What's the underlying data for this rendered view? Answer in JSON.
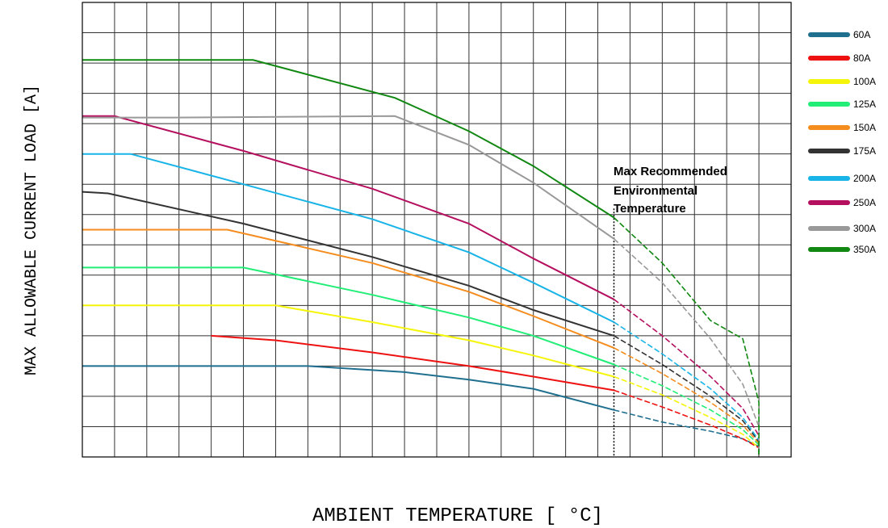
{
  "chart_data": {
    "type": "line",
    "title": "",
    "xlabel": "AMBIENT TEMPERATURE [ °C]",
    "ylabel": "MAX ALLOWABLE CURRENT LOAD [A]",
    "xlim": [
      0,
      22
    ],
    "ylim": [
      0,
      15
    ],
    "grid": true,
    "legend_position": "top-right",
    "annotation": {
      "lines": [
        "Max Recommended",
        "Environmental",
        "Temperature"
      ],
      "x": 16.5
    },
    "series": [
      {
        "name": "60A",
        "color": "#1f6f8f",
        "x": [
          0,
          7,
          10,
          12,
          14,
          16.5,
          18,
          19.5,
          20.5,
          21,
          21
        ],
        "y": [
          3.0,
          3.0,
          2.8,
          2.55,
          2.25,
          1.55,
          1.15,
          0.85,
          0.6,
          0.35,
          0
        ]
      },
      {
        "name": "80A",
        "color": "#ee1111",
        "x": [
          4,
          6,
          9,
          12,
          14,
          16.5,
          18,
          19.5,
          20.5,
          21,
          21
        ],
        "y": [
          4.0,
          3.85,
          3.45,
          3.0,
          2.65,
          2.2,
          1.65,
          1.05,
          0.6,
          0.3,
          0
        ]
      },
      {
        "name": "100A",
        "color": "#f5f50a",
        "x": [
          0,
          6,
          9,
          12,
          14,
          16.5,
          18,
          19.5,
          20.5,
          21,
          21
        ],
        "y": [
          5.0,
          5.0,
          4.45,
          3.85,
          3.35,
          2.65,
          2.05,
          1.3,
          0.75,
          0.3,
          0
        ]
      },
      {
        "name": "125A",
        "color": "#22ee77",
        "x": [
          0,
          5,
          9,
          12,
          14,
          16.5,
          18,
          19.5,
          20.5,
          21,
          21
        ],
        "y": [
          6.25,
          6.25,
          5.35,
          4.6,
          4.0,
          3.05,
          2.35,
          1.55,
          0.9,
          0.4,
          0
        ]
      },
      {
        "name": "150A",
        "color": "#f58c1e",
        "x": [
          0,
          4.5,
          9,
          12,
          14,
          16.5,
          18,
          19.5,
          20.5,
          21,
          21
        ],
        "y": [
          7.5,
          7.5,
          6.4,
          5.45,
          4.65,
          3.6,
          2.75,
          1.8,
          1.05,
          0.45,
          0
        ]
      },
      {
        "name": "175A",
        "color": "#333333",
        "x": [
          0,
          0.8,
          5,
          9,
          12,
          14,
          16.5,
          18,
          19.5,
          20.5,
          21,
          21
        ],
        "y": [
          8.75,
          8.7,
          7.7,
          6.6,
          5.65,
          4.85,
          4.0,
          3.05,
          2.0,
          1.2,
          0.5,
          0
        ]
      },
      {
        "name": "200A",
        "color": "#18b4e8",
        "x": [
          0,
          1.5,
          5,
          9,
          12,
          14,
          16.5,
          18,
          19.5,
          20.5,
          21,
          21
        ],
        "y": [
          10.0,
          10.0,
          9.0,
          7.85,
          6.75,
          5.75,
          4.45,
          3.4,
          2.25,
          1.3,
          0.55,
          0
        ]
      },
      {
        "name": "250A",
        "color": "#b5105f",
        "x": [
          0,
          1,
          5,
          9,
          12,
          14,
          16.5,
          18,
          19.5,
          20.5,
          21,
          21
        ],
        "y": [
          11.25,
          11.25,
          10.1,
          8.85,
          7.7,
          6.55,
          5.2,
          4.0,
          2.65,
          1.6,
          0.7,
          0
        ]
      },
      {
        "name": "300A",
        "color": "#999999",
        "x": [
          0,
          2.8,
          9.7,
          12,
          14,
          16.5,
          18,
          19.5,
          20.5,
          21,
          21
        ],
        "y": [
          11.2,
          11.2,
          11.25,
          10.3,
          9.05,
          7.2,
          5.75,
          3.9,
          2.4,
          1.0,
          0
        ]
      },
      {
        "name": "350A",
        "color": "#118811",
        "x": [
          0,
          5.3,
          9.7,
          12,
          14,
          16.5,
          18,
          19.5,
          20.5,
          21,
          21
        ],
        "y": [
          13.1,
          13.1,
          11.85,
          10.75,
          9.6,
          7.9,
          6.4,
          4.5,
          3.9,
          1.8,
          0
        ]
      }
    ]
  }
}
